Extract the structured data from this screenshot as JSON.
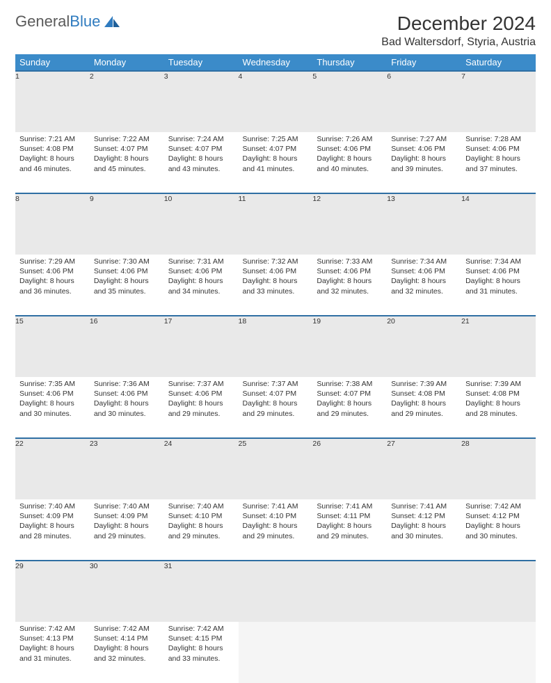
{
  "brand": {
    "part1": "General",
    "part2": "Blue"
  },
  "title": "December 2024",
  "location": "Bad Waltersdorf, Styria, Austria",
  "colors": {
    "header_bg": "#3b8bc9",
    "header_text": "#ffffff",
    "daynum_bg": "#e9e9e9",
    "daynum_border": "#2f6fa3",
    "body_text": "#333333",
    "brand_gray": "#5a5a5a",
    "brand_blue": "#2f7bbf"
  },
  "typography": {
    "title_fontsize": 28,
    "location_fontsize": 16,
    "dayheader_fontsize": 13,
    "cell_fontsize": 10.5
  },
  "day_headers": [
    "Sunday",
    "Monday",
    "Tuesday",
    "Wednesday",
    "Thursday",
    "Friday",
    "Saturday"
  ],
  "weeks": [
    [
      {
        "n": "1",
        "sr": "7:21 AM",
        "ss": "4:08 PM",
        "dl": "8 hours and 46 minutes."
      },
      {
        "n": "2",
        "sr": "7:22 AM",
        "ss": "4:07 PM",
        "dl": "8 hours and 45 minutes."
      },
      {
        "n": "3",
        "sr": "7:24 AM",
        "ss": "4:07 PM",
        "dl": "8 hours and 43 minutes."
      },
      {
        "n": "4",
        "sr": "7:25 AM",
        "ss": "4:07 PM",
        "dl": "8 hours and 41 minutes."
      },
      {
        "n": "5",
        "sr": "7:26 AM",
        "ss": "4:06 PM",
        "dl": "8 hours and 40 minutes."
      },
      {
        "n": "6",
        "sr": "7:27 AM",
        "ss": "4:06 PM",
        "dl": "8 hours and 39 minutes."
      },
      {
        "n": "7",
        "sr": "7:28 AM",
        "ss": "4:06 PM",
        "dl": "8 hours and 37 minutes."
      }
    ],
    [
      {
        "n": "8",
        "sr": "7:29 AM",
        "ss": "4:06 PM",
        "dl": "8 hours and 36 minutes."
      },
      {
        "n": "9",
        "sr": "7:30 AM",
        "ss": "4:06 PM",
        "dl": "8 hours and 35 minutes."
      },
      {
        "n": "10",
        "sr": "7:31 AM",
        "ss": "4:06 PM",
        "dl": "8 hours and 34 minutes."
      },
      {
        "n": "11",
        "sr": "7:32 AM",
        "ss": "4:06 PM",
        "dl": "8 hours and 33 minutes."
      },
      {
        "n": "12",
        "sr": "7:33 AM",
        "ss": "4:06 PM",
        "dl": "8 hours and 32 minutes."
      },
      {
        "n": "13",
        "sr": "7:34 AM",
        "ss": "4:06 PM",
        "dl": "8 hours and 32 minutes."
      },
      {
        "n": "14",
        "sr": "7:34 AM",
        "ss": "4:06 PM",
        "dl": "8 hours and 31 minutes."
      }
    ],
    [
      {
        "n": "15",
        "sr": "7:35 AM",
        "ss": "4:06 PM",
        "dl": "8 hours and 30 minutes."
      },
      {
        "n": "16",
        "sr": "7:36 AM",
        "ss": "4:06 PM",
        "dl": "8 hours and 30 minutes."
      },
      {
        "n": "17",
        "sr": "7:37 AM",
        "ss": "4:06 PM",
        "dl": "8 hours and 29 minutes."
      },
      {
        "n": "18",
        "sr": "7:37 AM",
        "ss": "4:07 PM",
        "dl": "8 hours and 29 minutes."
      },
      {
        "n": "19",
        "sr": "7:38 AM",
        "ss": "4:07 PM",
        "dl": "8 hours and 29 minutes."
      },
      {
        "n": "20",
        "sr": "7:39 AM",
        "ss": "4:08 PM",
        "dl": "8 hours and 29 minutes."
      },
      {
        "n": "21",
        "sr": "7:39 AM",
        "ss": "4:08 PM",
        "dl": "8 hours and 28 minutes."
      }
    ],
    [
      {
        "n": "22",
        "sr": "7:40 AM",
        "ss": "4:09 PM",
        "dl": "8 hours and 28 minutes."
      },
      {
        "n": "23",
        "sr": "7:40 AM",
        "ss": "4:09 PM",
        "dl": "8 hours and 29 minutes."
      },
      {
        "n": "24",
        "sr": "7:40 AM",
        "ss": "4:10 PM",
        "dl": "8 hours and 29 minutes."
      },
      {
        "n": "25",
        "sr": "7:41 AM",
        "ss": "4:10 PM",
        "dl": "8 hours and 29 minutes."
      },
      {
        "n": "26",
        "sr": "7:41 AM",
        "ss": "4:11 PM",
        "dl": "8 hours and 29 minutes."
      },
      {
        "n": "27",
        "sr": "7:41 AM",
        "ss": "4:12 PM",
        "dl": "8 hours and 30 minutes."
      },
      {
        "n": "28",
        "sr": "7:42 AM",
        "ss": "4:12 PM",
        "dl": "8 hours and 30 minutes."
      }
    ],
    [
      {
        "n": "29",
        "sr": "7:42 AM",
        "ss": "4:13 PM",
        "dl": "8 hours and 31 minutes."
      },
      {
        "n": "30",
        "sr": "7:42 AM",
        "ss": "4:14 PM",
        "dl": "8 hours and 32 minutes."
      },
      {
        "n": "31",
        "sr": "7:42 AM",
        "ss": "4:15 PM",
        "dl": "8 hours and 33 minutes."
      },
      null,
      null,
      null,
      null
    ]
  ],
  "labels": {
    "sunrise": "Sunrise:",
    "sunset": "Sunset:",
    "daylight": "Daylight:"
  }
}
